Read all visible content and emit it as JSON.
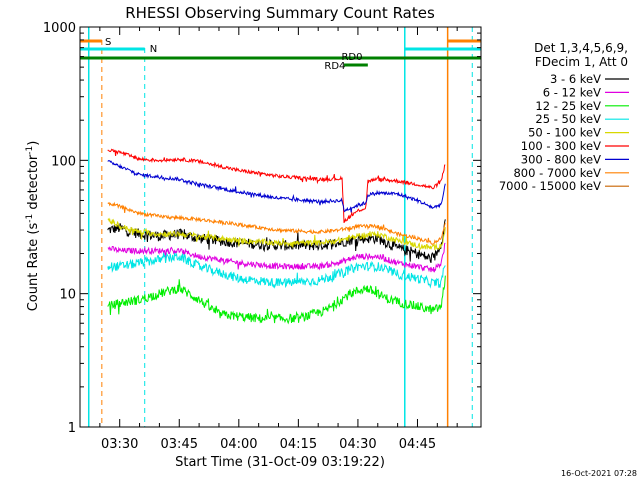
{
  "chart_data": {
    "type": "line",
    "title": "RHESSI Observing Summary Count Rates",
    "xlabel": "Start Time (31-Oct-09 03:19:22)",
    "ylabel_main": "Count Rate (s",
    "ylabel_sup1": "-1",
    "ylabel_mid": " detector",
    "ylabel_sup2": "-1",
    "ylabel_end": ")",
    "yscale": "log",
    "ylim": [
      1,
      1000
    ],
    "xlim_min": [
      200,
      301
    ],
    "x_ticks": [
      {
        "m": 210,
        "label": "03:30"
      },
      {
        "m": 225,
        "label": "03:45"
      },
      {
        "m": 240,
        "label": "04:00"
      },
      {
        "m": 255,
        "label": "04:15"
      },
      {
        "m": 270,
        "label": "04:30"
      },
      {
        "m": 285,
        "label": "04:45"
      }
    ],
    "y_ticks": [
      {
        "v": 1,
        "label": "1"
      },
      {
        "v": 10,
        "label": "10"
      },
      {
        "v": 100,
        "label": "100"
      },
      {
        "v": 1000,
        "label": "1000"
      }
    ],
    "legend_header": [
      "Det 1,3,4,5,6,9,",
      "FDecim 1, Att 0"
    ],
    "legend_placement": "right",
    "footer_stamp": "16-Oct-2021 07:28",
    "flags": [
      {
        "label": "S",
        "color": "#ff8000"
      },
      {
        "label": "N",
        "color": "#00e5e5"
      },
      {
        "label": "RD0",
        "color": "#008000"
      },
      {
        "label": "RD4",
        "color": "#008000"
      }
    ],
    "series": [
      {
        "name": "3 - 6 keV",
        "color": "#000000",
        "noise": 0.09,
        "points": [
          [
            207,
            30
          ],
          [
            210,
            31
          ],
          [
            215,
            28
          ],
          [
            220,
            27
          ],
          [
            225,
            28
          ],
          [
            230,
            26
          ],
          [
            240,
            24
          ],
          [
            250,
            23
          ],
          [
            260,
            23
          ],
          [
            265,
            24
          ],
          [
            270,
            26
          ],
          [
            275,
            26
          ],
          [
            280,
            22
          ],
          [
            285,
            20
          ],
          [
            289,
            18
          ],
          [
            291,
            24
          ],
          [
            292,
            35
          ]
        ]
      },
      {
        "name": "6 - 12 keV",
        "color": "#e000e0",
        "noise": 0.05,
        "points": [
          [
            207,
            22
          ],
          [
            210,
            21
          ],
          [
            215,
            21
          ],
          [
            220,
            21
          ],
          [
            225,
            21
          ],
          [
            230,
            19
          ],
          [
            240,
            17
          ],
          [
            250,
            16
          ],
          [
            260,
            16
          ],
          [
            265,
            17
          ],
          [
            270,
            19
          ],
          [
            275,
            19
          ],
          [
            280,
            17
          ],
          [
            285,
            16
          ],
          [
            289,
            15
          ],
          [
            291,
            17
          ],
          [
            292,
            24
          ]
        ]
      },
      {
        "name": "12 - 25 keV",
        "color": "#00ee00",
        "noise": 0.08,
        "points": [
          [
            207,
            8
          ],
          [
            210,
            8.5
          ],
          [
            215,
            9
          ],
          [
            220,
            10
          ],
          [
            225,
            11
          ],
          [
            230,
            9
          ],
          [
            235,
            7
          ],
          [
            245,
            6.5
          ],
          [
            255,
            6.5
          ],
          [
            262,
            7.5
          ],
          [
            268,
            10
          ],
          [
            272,
            11
          ],
          [
            278,
            9
          ],
          [
            285,
            8
          ],
          [
            289,
            7.5
          ],
          [
            291,
            8
          ],
          [
            292,
            13
          ]
        ]
      },
      {
        "name": "25 - 50 keV",
        "color": "#00e5e5",
        "noise": 0.08,
        "points": [
          [
            207,
            16
          ],
          [
            210,
            16
          ],
          [
            215,
            17
          ],
          [
            220,
            18
          ],
          [
            225,
            19
          ],
          [
            230,
            16
          ],
          [
            240,
            13
          ],
          [
            250,
            12
          ],
          [
            260,
            12.5
          ],
          [
            265,
            14
          ],
          [
            270,
            16
          ],
          [
            275,
            16
          ],
          [
            280,
            14
          ],
          [
            285,
            13
          ],
          [
            289,
            12
          ],
          [
            291,
            12
          ],
          [
            292,
            17
          ]
        ]
      },
      {
        "name": "50 - 100 keV",
        "color": "#d8d800",
        "noise": 0.05,
        "points": [
          [
            207,
            36
          ],
          [
            210,
            32
          ],
          [
            215,
            29
          ],
          [
            220,
            28
          ],
          [
            225,
            28
          ],
          [
            230,
            27
          ],
          [
            240,
            25
          ],
          [
            250,
            24
          ],
          [
            260,
            24
          ],
          [
            265,
            25
          ],
          [
            270,
            27
          ],
          [
            275,
            28
          ],
          [
            280,
            25
          ],
          [
            285,
            23
          ],
          [
            289,
            22
          ],
          [
            291,
            23
          ],
          [
            292,
            30
          ]
        ]
      },
      {
        "name": "100 - 300 keV",
        "color": "#ff0000",
        "noise": 0.03,
        "points": [
          [
            207,
            120
          ],
          [
            210,
            115
          ],
          [
            215,
            102
          ],
          [
            220,
            100
          ],
          [
            225,
            102
          ],
          [
            230,
            98
          ],
          [
            240,
            84
          ],
          [
            250,
            76
          ],
          [
            260,
            72
          ],
          [
            266,
            73
          ],
          [
            266.5,
            35
          ],
          [
            270,
            42
          ],
          [
            272,
            44
          ],
          [
            272.5,
            70
          ],
          [
            275,
            72
          ],
          [
            280,
            70
          ],
          [
            285,
            66
          ],
          [
            289,
            62
          ],
          [
            291,
            70
          ],
          [
            292,
            95
          ]
        ]
      },
      {
        "name": "300 - 800 keV",
        "color": "#0000d0",
        "noise": 0.03,
        "points": [
          [
            207,
            98
          ],
          [
            210,
            90
          ],
          [
            215,
            78
          ],
          [
            220,
            75
          ],
          [
            225,
            72
          ],
          [
            230,
            66
          ],
          [
            240,
            58
          ],
          [
            250,
            52
          ],
          [
            260,
            49
          ],
          [
            266,
            50
          ],
          [
            266.5,
            42
          ],
          [
            270,
            46
          ],
          [
            272,
            48
          ],
          [
            272.5,
            55
          ],
          [
            275,
            57
          ],
          [
            280,
            56
          ],
          [
            285,
            50
          ],
          [
            289,
            44
          ],
          [
            291,
            47
          ],
          [
            292,
            65
          ]
        ]
      },
      {
        "name": "800 - 7000 keV",
        "color": "#ff8000",
        "noise": 0.03,
        "points": [
          [
            207,
            48
          ],
          [
            210,
            45
          ],
          [
            215,
            40
          ],
          [
            220,
            38
          ],
          [
            225,
            37
          ],
          [
            230,
            36
          ],
          [
            240,
            33
          ],
          [
            250,
            30
          ],
          [
            260,
            29
          ],
          [
            265,
            30
          ],
          [
            270,
            32
          ],
          [
            275,
            32
          ],
          [
            280,
            28
          ],
          [
            285,
            26
          ],
          [
            289,
            24
          ],
          [
            291,
            26
          ],
          [
            292,
            35
          ]
        ]
      },
      {
        "name": "7000 - 15000 keV",
        "color": "#c86400",
        "noise": 0.0,
        "points": []
      }
    ]
  }
}
